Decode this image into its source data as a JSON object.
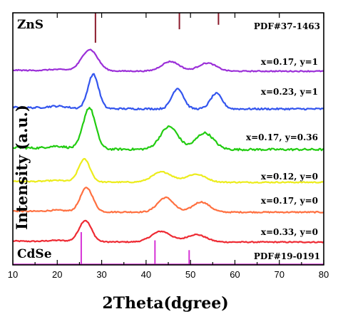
{
  "chart_data": {
    "type": "line",
    "xlabel": "2Theta(dgree)",
    "ylabel": "Intensity (a.u.)",
    "xlim": [
      10,
      80
    ],
    "x_ticks": [
      10,
      20,
      30,
      40,
      50,
      60,
      70,
      80
    ],
    "reference_top": {
      "name": "ZnS",
      "card": "PDF#37-1463",
      "color": "#8b1a2a",
      "peaks": [
        {
          "x": 28.6,
          "rel_intensity": 1.0
        },
        {
          "x": 47.5,
          "rel_intensity": 0.55
        },
        {
          "x": 56.3,
          "rel_intensity": 0.4
        }
      ]
    },
    "reference_bottom": {
      "name": "CdSe",
      "card": "PDF#19-0191",
      "color": "#d633d6",
      "peaks": [
        {
          "x": 25.4,
          "rel_intensity": 1.0
        },
        {
          "x": 42.0,
          "rel_intensity": 0.75
        },
        {
          "x": 49.7,
          "rel_intensity": 0.45
        }
      ]
    },
    "series": [
      {
        "name": "x=0.33, y=0",
        "color": "#ee2a33",
        "peaks": [
          {
            "x": 26.3,
            "h": 1.0,
            "w": 1.4
          },
          {
            "x": 43.4,
            "h": 0.5,
            "w": 2.2
          },
          {
            "x": 51.3,
            "h": 0.35,
            "w": 2.2
          }
        ]
      },
      {
        "name": "x=0.17, y=0",
        "color": "#ff7040",
        "peaks": [
          {
            "x": 26.6,
            "h": 1.0,
            "w": 1.4
          },
          {
            "x": 44.4,
            "h": 0.6,
            "w": 1.8
          },
          {
            "x": 52.4,
            "h": 0.42,
            "w": 1.9
          }
        ]
      },
      {
        "name": "x=0.12, y=0",
        "color": "#ecec1c",
        "peaks": [
          {
            "x": 26.1,
            "h": 1.0,
            "w": 1.3
          },
          {
            "x": 43.6,
            "h": 0.45,
            "w": 2.2
          },
          {
            "x": 51.2,
            "h": 0.35,
            "w": 2.2
          }
        ]
      },
      {
        "name": "x=0.17, y=0.36",
        "color": "#22cc11",
        "peaks": [
          {
            "x": 27.2,
            "h": 1.0,
            "w": 1.4
          },
          {
            "x": 45.2,
            "h": 0.55,
            "w": 2.0
          },
          {
            "x": 53.2,
            "h": 0.4,
            "w": 2.0
          }
        ]
      },
      {
        "name": "x=0.23, y=1",
        "color": "#3355ee",
        "peaks": [
          {
            "x": 28.1,
            "h": 1.0,
            "w": 1.2
          },
          {
            "x": 47.1,
            "h": 0.6,
            "w": 1.3
          },
          {
            "x": 55.8,
            "h": 0.45,
            "w": 1.3
          }
        ]
      },
      {
        "name": "x=0.17, y=1",
        "color": "#9b2fd8",
        "peaks": [
          {
            "x": 27.3,
            "h": 1.0,
            "w": 1.8
          },
          {
            "x": 45.5,
            "h": 0.45,
            "w": 2.0
          },
          {
            "x": 53.8,
            "h": 0.38,
            "w": 2.0
          }
        ]
      }
    ],
    "grid": false,
    "legend": "none"
  }
}
